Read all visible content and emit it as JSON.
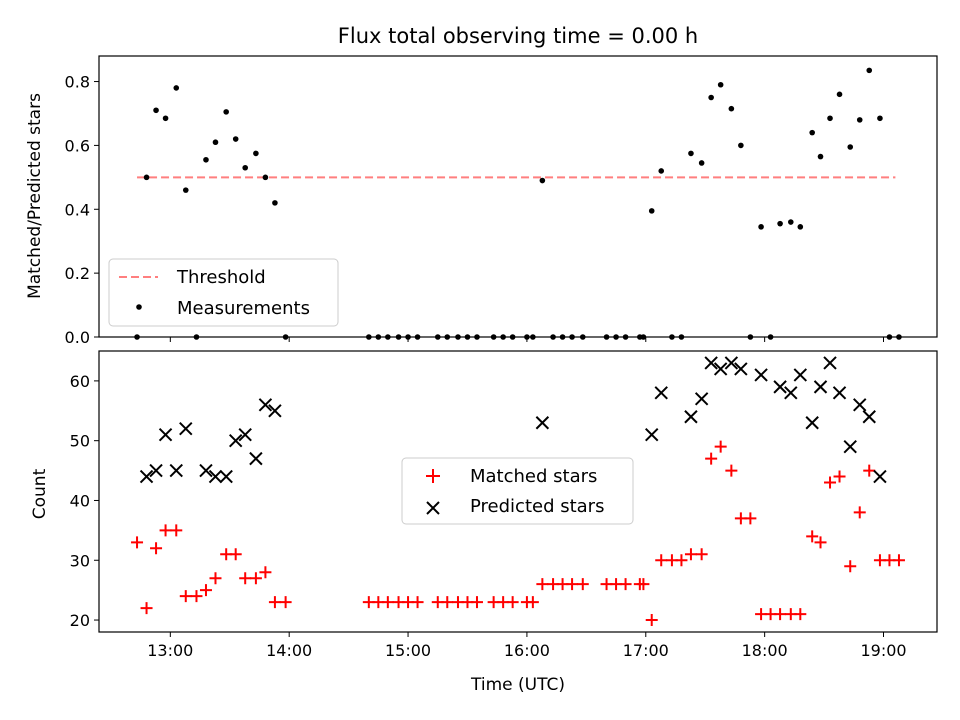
{
  "chart_data": [
    {
      "type": "scatter",
      "title": "Flux total observing time = 0.00 h",
      "xlabel": "",
      "ylabel": "Matched/Predicted stars",
      "xlim": [
        12.4,
        19.45
      ],
      "ylim": [
        0,
        0.88
      ],
      "yticks": [
        "0.0",
        "0.2",
        "0.4",
        "0.6",
        "0.8"
      ],
      "ytick_values": [
        0,
        0.2,
        0.4,
        0.6,
        0.8
      ],
      "xticks_values": [
        13,
        14,
        15,
        16,
        17,
        18,
        19
      ],
      "grid": false,
      "legend_position": "lower-left",
      "legend": [
        "Threshold",
        "Measurements"
      ],
      "threshold": {
        "name": "Threshold",
        "value": 0.5,
        "x_range": [
          12.72,
          19.1
        ],
        "color": "#ff7f7f",
        "style": "dashed"
      },
      "series": [
        {
          "name": "Measurements",
          "color": "#000000",
          "marker": "dot",
          "points": [
            [
              12.72,
              0.0
            ],
            [
              12.8,
              0.5
            ],
            [
              12.88,
              0.71
            ],
            [
              12.96,
              0.685
            ],
            [
              13.05,
              0.78
            ],
            [
              13.13,
              0.46
            ],
            [
              13.22,
              0.0
            ],
            [
              13.3,
              0.555
            ],
            [
              13.38,
              0.61
            ],
            [
              13.47,
              0.705
            ],
            [
              13.55,
              0.62
            ],
            [
              13.63,
              0.53
            ],
            [
              13.72,
              0.575
            ],
            [
              13.8,
              0.5
            ],
            [
              13.88,
              0.42
            ],
            [
              13.97,
              0.0
            ],
            [
              14.67,
              0.0
            ],
            [
              14.75,
              0.0
            ],
            [
              14.83,
              0.0
            ],
            [
              14.92,
              0.0
            ],
            [
              15.0,
              0.0
            ],
            [
              15.08,
              0.0
            ],
            [
              15.25,
              0.0
            ],
            [
              15.33,
              0.0
            ],
            [
              15.42,
              0.0
            ],
            [
              15.5,
              0.0
            ],
            [
              15.58,
              0.0
            ],
            [
              15.72,
              0.0
            ],
            [
              15.8,
              0.0
            ],
            [
              15.88,
              0.0
            ],
            [
              16.0,
              0.0
            ],
            [
              16.05,
              0.0
            ],
            [
              16.13,
              0.49
            ],
            [
              16.22,
              0.0
            ],
            [
              16.3,
              0.0
            ],
            [
              16.38,
              0.0
            ],
            [
              16.47,
              0.0
            ],
            [
              16.67,
              0.0
            ],
            [
              16.75,
              0.0
            ],
            [
              16.83,
              0.0
            ],
            [
              16.95,
              0.0
            ],
            [
              16.98,
              0.0
            ],
            [
              17.05,
              0.395
            ],
            [
              17.13,
              0.52
            ],
            [
              17.22,
              0.0
            ],
            [
              17.3,
              0.0
            ],
            [
              17.38,
              0.575
            ],
            [
              17.47,
              0.545
            ],
            [
              17.55,
              0.75
            ],
            [
              17.63,
              0.79
            ],
            [
              17.72,
              0.715
            ],
            [
              17.8,
              0.6
            ],
            [
              17.88,
              0.0
            ],
            [
              17.97,
              0.345
            ],
            [
              18.05,
              0.0
            ],
            [
              18.13,
              0.355
            ],
            [
              18.22,
              0.36
            ],
            [
              18.3,
              0.345
            ],
            [
              18.4,
              0.64
            ],
            [
              18.47,
              0.565
            ],
            [
              18.55,
              0.685
            ],
            [
              18.63,
              0.76
            ],
            [
              18.72,
              0.595
            ],
            [
              18.8,
              0.68
            ],
            [
              18.88,
              0.835
            ],
            [
              18.97,
              0.685
            ],
            [
              19.05,
              0.0
            ],
            [
              19.13,
              0.0
            ]
          ]
        }
      ]
    },
    {
      "type": "scatter",
      "title": "",
      "xlabel": "Time (UTC)",
      "ylabel": "Count",
      "xlim": [
        12.4,
        19.45
      ],
      "ylim": [
        18,
        65
      ],
      "xticks": [
        "13:00",
        "14:00",
        "15:00",
        "16:00",
        "17:00",
        "18:00",
        "19:00"
      ],
      "xtick_values": [
        13,
        14,
        15,
        16,
        17,
        18,
        19
      ],
      "yticks": [
        "20",
        "30",
        "40",
        "50",
        "60"
      ],
      "ytick_values": [
        20,
        30,
        40,
        50,
        60
      ],
      "grid": false,
      "legend_position": "center",
      "legend": [
        "Matched stars",
        "Predicted stars"
      ],
      "series": [
        {
          "name": "Matched stars",
          "color": "#ff0000",
          "marker": "plus",
          "points": [
            [
              12.72,
              33
            ],
            [
              12.8,
              22
            ],
            [
              12.88,
              32
            ],
            [
              12.96,
              35
            ],
            [
              13.05,
              35
            ],
            [
              13.13,
              24
            ],
            [
              13.22,
              24
            ],
            [
              13.3,
              25
            ],
            [
              13.38,
              27
            ],
            [
              13.47,
              31
            ],
            [
              13.55,
              31
            ],
            [
              13.63,
              27
            ],
            [
              13.72,
              27
            ],
            [
              13.8,
              28
            ],
            [
              13.88,
              23
            ],
            [
              13.97,
              23
            ],
            [
              14.67,
              23
            ],
            [
              14.75,
              23
            ],
            [
              14.83,
              23
            ],
            [
              14.92,
              23
            ],
            [
              15.0,
              23
            ],
            [
              15.08,
              23
            ],
            [
              15.25,
              23
            ],
            [
              15.33,
              23
            ],
            [
              15.42,
              23
            ],
            [
              15.5,
              23
            ],
            [
              15.58,
              23
            ],
            [
              15.72,
              23
            ],
            [
              15.8,
              23
            ],
            [
              15.88,
              23
            ],
            [
              16.0,
              23
            ],
            [
              16.05,
              23
            ],
            [
              16.13,
              26
            ],
            [
              16.22,
              26
            ],
            [
              16.3,
              26
            ],
            [
              16.38,
              26
            ],
            [
              16.47,
              26
            ],
            [
              16.67,
              26
            ],
            [
              16.75,
              26
            ],
            [
              16.83,
              26
            ],
            [
              16.95,
              26
            ],
            [
              16.98,
              26
            ],
            [
              17.05,
              20
            ],
            [
              17.13,
              30
            ],
            [
              17.22,
              30
            ],
            [
              17.3,
              30
            ],
            [
              17.38,
              31
            ],
            [
              17.47,
              31
            ],
            [
              17.55,
              47
            ],
            [
              17.63,
              49
            ],
            [
              17.72,
              45
            ],
            [
              17.8,
              37
            ],
            [
              17.88,
              37
            ],
            [
              17.97,
              21
            ],
            [
              18.05,
              21
            ],
            [
              18.13,
              21
            ],
            [
              18.22,
              21
            ],
            [
              18.3,
              21
            ],
            [
              18.4,
              34
            ],
            [
              18.47,
              33
            ],
            [
              18.55,
              43
            ],
            [
              18.63,
              44
            ],
            [
              18.72,
              29
            ],
            [
              18.8,
              38
            ],
            [
              18.88,
              45
            ],
            [
              18.97,
              30
            ],
            [
              19.05,
              30
            ],
            [
              19.13,
              30
            ]
          ]
        },
        {
          "name": "Predicted stars",
          "color": "#000000",
          "marker": "x",
          "points": [
            [
              12.8,
              44
            ],
            [
              12.88,
              45
            ],
            [
              12.96,
              51
            ],
            [
              13.05,
              45
            ],
            [
              13.13,
              52
            ],
            [
              13.3,
              45
            ],
            [
              13.38,
              44
            ],
            [
              13.47,
              44
            ],
            [
              13.55,
              50
            ],
            [
              13.63,
              51
            ],
            [
              13.72,
              47
            ],
            [
              13.8,
              56
            ],
            [
              13.88,
              55
            ],
            [
              16.13,
              53
            ],
            [
              17.05,
              51
            ],
            [
              17.13,
              58
            ],
            [
              17.38,
              54
            ],
            [
              17.47,
              57
            ],
            [
              17.55,
              63
            ],
            [
              17.63,
              62
            ],
            [
              17.72,
              63
            ],
            [
              17.8,
              62
            ],
            [
              17.97,
              61
            ],
            [
              18.13,
              59
            ],
            [
              18.22,
              58
            ],
            [
              18.3,
              61
            ],
            [
              18.4,
              53
            ],
            [
              18.47,
              59
            ],
            [
              18.55,
              63
            ],
            [
              18.63,
              58
            ],
            [
              18.72,
              49
            ],
            [
              18.8,
              56
            ],
            [
              18.88,
              54
            ],
            [
              18.97,
              44
            ]
          ]
        }
      ]
    }
  ]
}
